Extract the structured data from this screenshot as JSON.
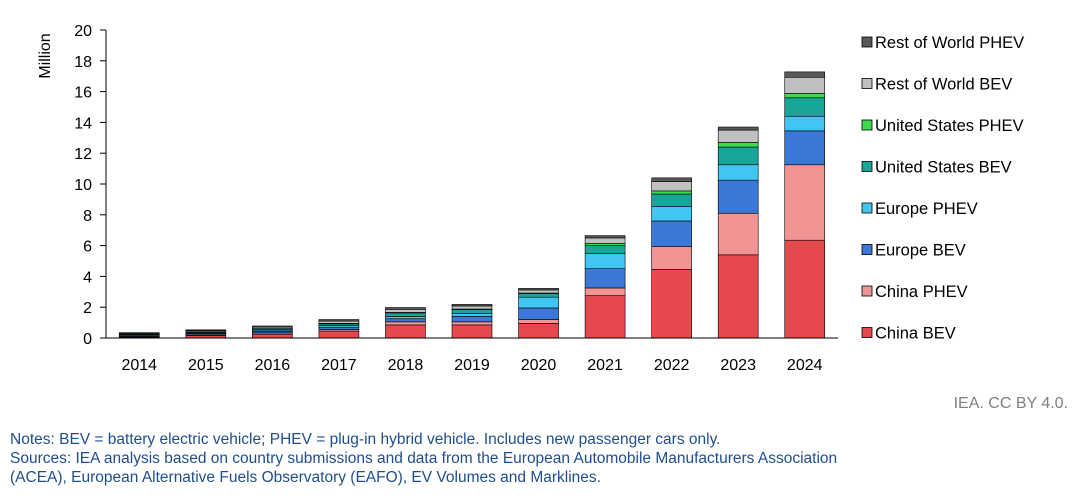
{
  "chart_data": {
    "type": "bar",
    "stacked": true,
    "ylabel": "Million",
    "ylim": [
      0,
      20
    ],
    "yticks": [
      0,
      2,
      4,
      6,
      8,
      10,
      12,
      14,
      16,
      18,
      20
    ],
    "categories": [
      "2014",
      "2015",
      "2016",
      "2017",
      "2018",
      "2019",
      "2020",
      "2021",
      "2022",
      "2023",
      "2024"
    ],
    "legend_position": "right",
    "series": [
      {
        "name": "China BEV",
        "color": "#e5484d",
        "values": [
          0.05,
          0.15,
          0.25,
          0.45,
          0.85,
          0.85,
          0.95,
          2.75,
          4.45,
          5.4,
          6.35
        ]
      },
      {
        "name": "China PHEV",
        "color": "#f09494",
        "values": [
          0.02,
          0.05,
          0.08,
          0.1,
          0.2,
          0.2,
          0.25,
          0.5,
          1.5,
          2.7,
          4.9
        ]
      },
      {
        "name": "Europe BEV",
        "color": "#3b78d8",
        "values": [
          0.05,
          0.08,
          0.1,
          0.15,
          0.2,
          0.35,
          0.75,
          1.25,
          1.65,
          2.15,
          2.2
        ]
      },
      {
        "name": "Europe PHEV",
        "color": "#3fc7f2",
        "values": [
          0.03,
          0.05,
          0.08,
          0.12,
          0.15,
          0.2,
          0.7,
          1.0,
          0.95,
          1.0,
          0.95
        ]
      },
      {
        "name": "United States BEV",
        "color": "#18a69a",
        "values": [
          0.07,
          0.05,
          0.07,
          0.1,
          0.23,
          0.25,
          0.24,
          0.5,
          0.8,
          1.15,
          1.2
        ]
      },
      {
        "name": "United States PHEV",
        "color": "#3ddc4f",
        "values": [
          0.03,
          0.03,
          0.03,
          0.03,
          0.03,
          0.03,
          0.03,
          0.15,
          0.2,
          0.3,
          0.28
        ]
      },
      {
        "name": "Rest of World BEV",
        "color": "#c0c0c0",
        "values": [
          0.05,
          0.07,
          0.1,
          0.15,
          0.2,
          0.2,
          0.2,
          0.35,
          0.6,
          0.8,
          1.05
        ]
      },
      {
        "name": "Rest of World PHEV",
        "color": "#595959",
        "values": [
          0.05,
          0.05,
          0.07,
          0.1,
          0.12,
          0.1,
          0.1,
          0.15,
          0.25,
          0.2,
          0.35
        ]
      }
    ]
  },
  "footer": {
    "credit": "IEA. CC BY 4.0.",
    "notes": "Notes: BEV = battery electric vehicle; PHEV = plug-in hybrid vehicle. Includes new passenger cars only.",
    "sources_line1": "Sources: IEA analysis based on country submissions and data from the European Automobile Manufacturers Association",
    "sources_line2": "(ACEA), European Alternative Fuels Observatory (EAFO), EV Volumes and Marklines."
  }
}
